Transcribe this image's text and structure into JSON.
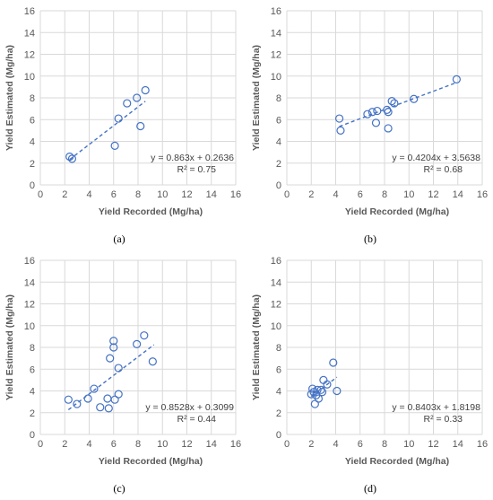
{
  "chart_data": [
    {
      "type": "scatter",
      "caption": "(a)",
      "xlabel": "Yield Recorded (Mg/ha)",
      "ylabel": "Yield Estimated (Mg/ha)",
      "xlim": [
        0,
        16
      ],
      "ylim": [
        0,
        16
      ],
      "xticks": [
        0,
        2,
        4,
        6,
        8,
        10,
        12,
        14,
        16
      ],
      "yticks": [
        0,
        2,
        4,
        6,
        8,
        10,
        12,
        14,
        16
      ],
      "grid": true,
      "marker_color": "#4472C4",
      "trendline": {
        "slope": 0.863,
        "intercept": 0.2636,
        "x_range": [
          2.4,
          8.6
        ]
      },
      "equation": "y = 0.863x + 0.2636",
      "r2": "R² = 0.75",
      "points": [
        [
          2.4,
          2.6
        ],
        [
          2.6,
          2.4
        ],
        [
          6.1,
          3.6
        ],
        [
          6.4,
          6.1
        ],
        [
          7.1,
          7.5
        ],
        [
          7.9,
          8.0
        ],
        [
          8.2,
          5.4
        ],
        [
          8.6,
          8.7
        ]
      ]
    },
    {
      "type": "scatter",
      "caption": "(b)",
      "xlabel": "Yield Recorded (Mg/ha)",
      "ylabel": "Yield Estimated (Mg/ha)",
      "xlim": [
        0,
        16
      ],
      "ylim": [
        0,
        16
      ],
      "xticks": [
        0,
        2,
        4,
        6,
        8,
        10,
        12,
        14,
        16
      ],
      "yticks": [
        0,
        2,
        4,
        6,
        8,
        10,
        12,
        14,
        16
      ],
      "grid": true,
      "marker_color": "#4472C4",
      "trendline": {
        "slope": 0.4204,
        "intercept": 3.5638,
        "x_range": [
          4.3,
          13.9
        ]
      },
      "equation": "y = 0.4204x + 3.5638",
      "r2": "R² = 0.68",
      "points": [
        [
          4.3,
          6.1
        ],
        [
          4.4,
          5.0
        ],
        [
          6.6,
          6.5
        ],
        [
          7.0,
          6.7
        ],
        [
          7.4,
          6.8
        ],
        [
          7.3,
          5.7
        ],
        [
          8.2,
          6.9
        ],
        [
          8.3,
          6.7
        ],
        [
          8.3,
          5.2
        ],
        [
          8.6,
          7.7
        ],
        [
          8.8,
          7.5
        ],
        [
          10.4,
          7.9
        ],
        [
          13.9,
          9.7
        ]
      ]
    },
    {
      "type": "scatter",
      "caption": "(c)",
      "xlabel": "Yield Recorded (Mg/ha)",
      "ylabel": "Yield Estimated (Mg/ha)",
      "xlim": [
        0,
        16
      ],
      "ylim": [
        0,
        16
      ],
      "xticks": [
        0,
        2,
        4,
        6,
        8,
        10,
        12,
        14,
        16
      ],
      "yticks": [
        0,
        2,
        4,
        6,
        8,
        10,
        12,
        14,
        16
      ],
      "grid": true,
      "marker_color": "#4472C4",
      "trendline": {
        "slope": 0.8528,
        "intercept": 0.3099,
        "x_range": [
          2.3,
          9.3
        ]
      },
      "equation": "y = 0.8528x + 0.3099",
      "r2": "R² = 0.44",
      "points": [
        [
          2.3,
          3.2
        ],
        [
          3.0,
          2.8
        ],
        [
          3.9,
          3.3
        ],
        [
          4.4,
          4.2
        ],
        [
          4.9,
          2.5
        ],
        [
          5.5,
          3.3
        ],
        [
          5.6,
          2.4
        ],
        [
          5.7,
          7.0
        ],
        [
          6.0,
          8.6
        ],
        [
          6.0,
          8.0
        ],
        [
          6.1,
          3.2
        ],
        [
          6.4,
          3.7
        ],
        [
          6.4,
          6.1
        ],
        [
          7.9,
          8.3
        ],
        [
          8.5,
          9.1
        ],
        [
          9.2,
          6.7
        ]
      ]
    },
    {
      "type": "scatter",
      "caption": "(d)",
      "xlabel": "Yield Recorded (Mg/ha)",
      "ylabel": "Yield Estimated (Mg/ha)",
      "xlim": [
        0,
        16
      ],
      "ylim": [
        0,
        16
      ],
      "xticks": [
        0,
        2,
        4,
        6,
        8,
        10,
        12,
        14,
        16
      ],
      "yticks": [
        0,
        2,
        4,
        6,
        8,
        10,
        12,
        14,
        16
      ],
      "grid": true,
      "marker_color": "#4472C4",
      "trendline": {
        "slope": 0.8403,
        "intercept": 1.8198,
        "x_range": [
          2.0,
          4.1
        ]
      },
      "equation": "y = 0.8403x + 1.8198",
      "r2": "R² = 0.33",
      "points": [
        [
          2.0,
          3.7
        ],
        [
          2.1,
          4.2
        ],
        [
          2.3,
          2.8
        ],
        [
          2.4,
          3.6
        ],
        [
          2.5,
          4.1
        ],
        [
          2.6,
          3.3
        ],
        [
          2.8,
          4.1
        ],
        [
          2.9,
          3.9
        ],
        [
          3.0,
          5.0
        ],
        [
          3.3,
          4.6
        ],
        [
          3.8,
          6.6
        ],
        [
          4.1,
          4.0
        ],
        [
          2.2,
          3.9
        ]
      ]
    }
  ]
}
